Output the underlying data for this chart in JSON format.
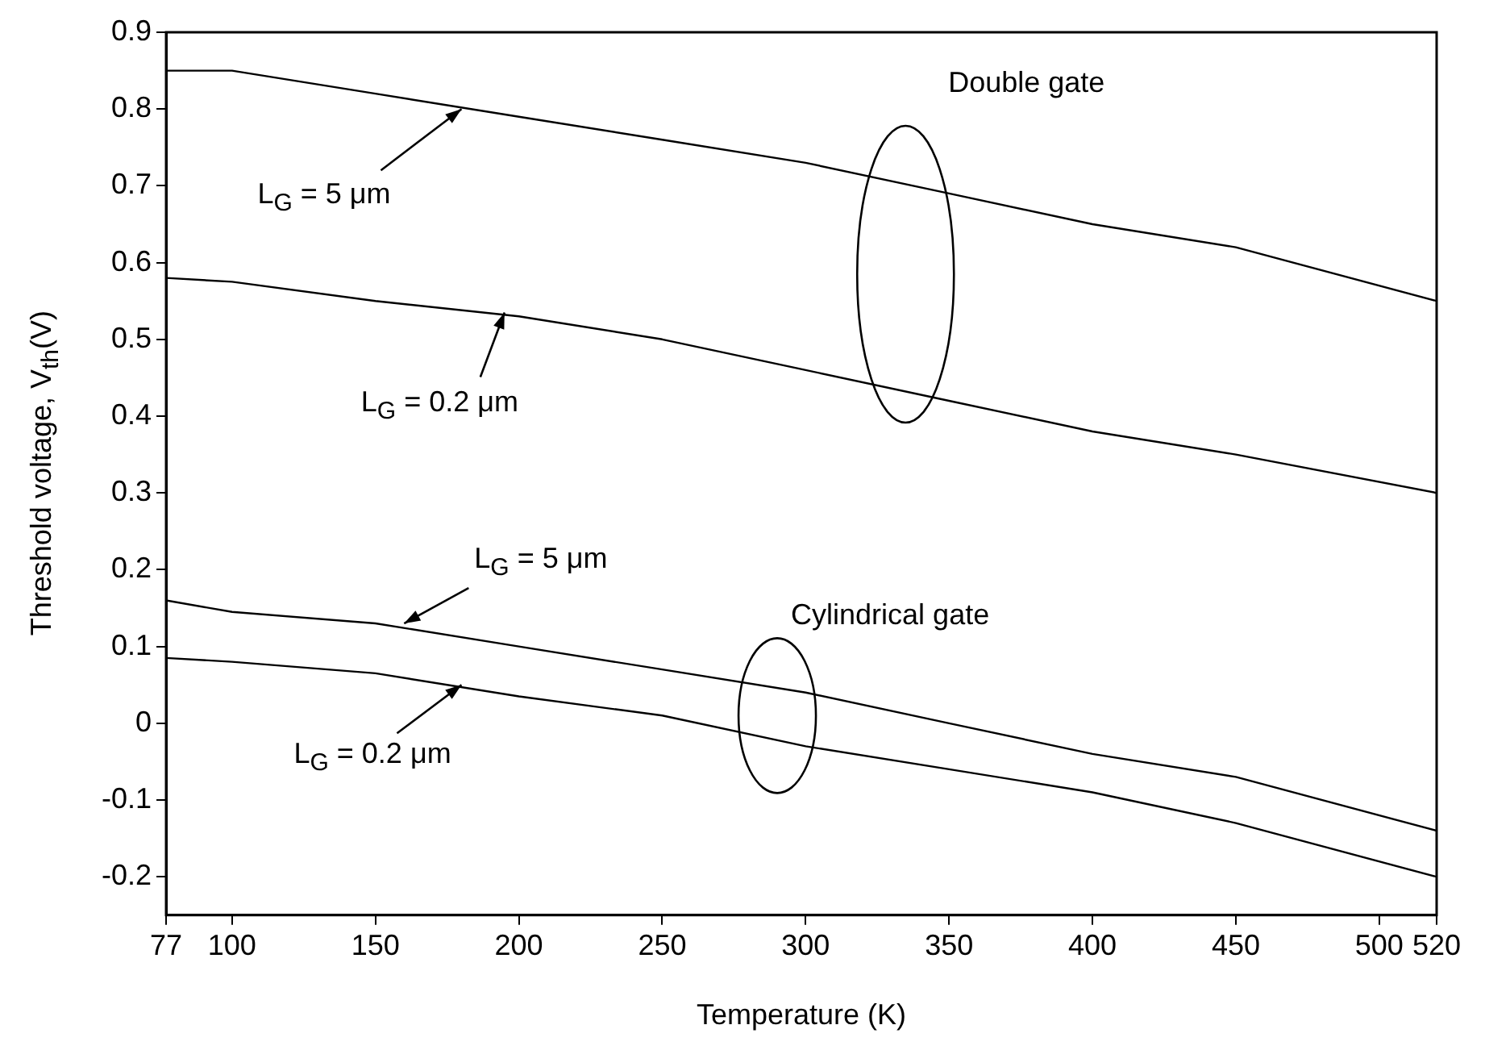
{
  "chart_data": {
    "type": "line",
    "xlabel": "Temperature (K)",
    "ylabel": "Threshold voltage, V$_{th}$(V)",
    "x": [
      77,
      100,
      150,
      200,
      250,
      300,
      350,
      400,
      450,
      520
    ],
    "series": [
      {
        "color": "#000000",
        "values": [
          0.85,
          0.85,
          0.82,
          0.79,
          0.76,
          0.73,
          0.69,
          0.65,
          0.62,
          0.55
        ]
      },
      {
        "color": "#000000",
        "values": [
          0.58,
          0.575,
          0.55,
          0.53,
          0.5,
          0.46,
          0.42,
          0.38,
          0.35,
          0.3
        ]
      },
      {
        "color": "#000000",
        "values": [
          0.16,
          0.145,
          0.13,
          0.1,
          0.07,
          0.04,
          0.0,
          -0.04,
          -0.07,
          -0.14
        ]
      },
      {
        "color": "#000000",
        "values": [
          0.085,
          0.08,
          0.065,
          0.035,
          0.01,
          -0.03,
          -0.06,
          -0.09,
          -0.13,
          -0.2
        ]
      }
    ],
    "xlim": [
      77,
      520
    ],
    "xticks": [
      77,
      100,
      150,
      200,
      250,
      300,
      350,
      400,
      450,
      500,
      520
    ],
    "ylim": [
      -0.25,
      0.9
    ],
    "yticks": [
      -0.2,
      -0.1,
      0.0,
      0.1,
      0.2,
      0.3,
      0.4,
      0.5,
      0.6,
      0.7,
      0.8,
      0.9
    ],
    "annotations": [
      {
        "text": "L$_{G}$ = 5 μm",
        "x": 180,
        "y": 0.8
      },
      {
        "text": "L$_{G}$ = 0.2 μm",
        "x": 195,
        "y": 0.535
      },
      {
        "text": "L$_{G}$ = 5 μm",
        "x": 160,
        "y": 0.13
      },
      {
        "text": "L$_{G}$ = 0.2 μm",
        "x": 180,
        "y": 0.05
      },
      "Double gate",
      "Cylindrical gate"
    ],
    "grid": false,
    "legend": false,
    "marker": "none",
    "line_style": "solid"
  }
}
